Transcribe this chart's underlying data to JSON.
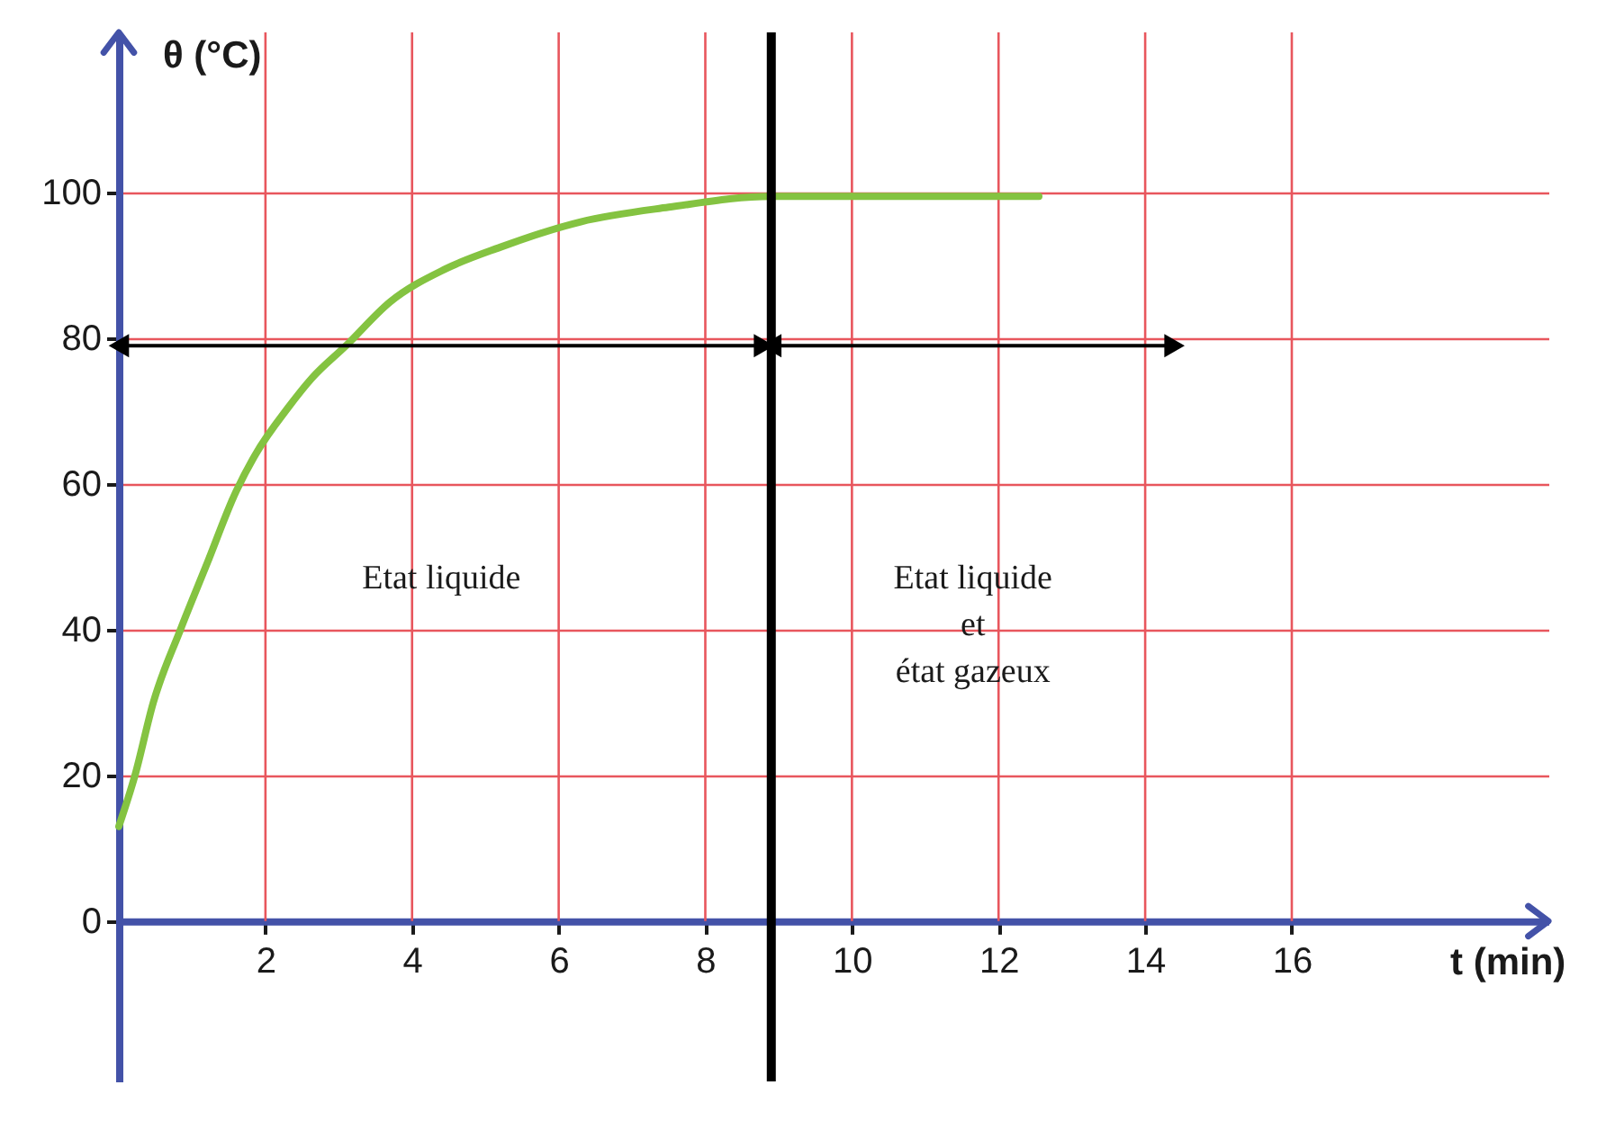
{
  "chart_data": {
    "type": "line",
    "xlabel": "t (min)",
    "ylabel": "θ (°C)",
    "xlim": [
      0,
      19.5
    ],
    "ylim": [
      -22,
      122
    ],
    "xticks": [
      2,
      4,
      6,
      8,
      10,
      12,
      14,
      16
    ],
    "yticks": [
      0,
      20,
      40,
      60,
      80,
      100
    ],
    "grid": true,
    "series": [
      {
        "color": "#84c341",
        "x": [
          0,
          0.22,
          0.47,
          0.84,
          1.2,
          1.6,
          1.86,
          2.31,
          2.63,
          3.1,
          3.7,
          4.45,
          5.2,
          6.3,
          7.5,
          8.9,
          10,
          11,
          12.55
        ],
        "values": [
          13,
          20,
          30,
          40,
          49,
          59,
          64,
          70.5,
          74.5,
          79,
          85,
          89.5,
          92.5,
          96,
          98,
          99.5,
          99.5,
          99.5,
          99.5
        ]
      },
      {
        "color": "#000000",
        "x": [
          0,
          8.8
        ],
        "values": [
          79,
          79
        ],
        "marker": "triangle"
      },
      {
        "color": "#000000",
        "x": [
          8.9,
          14.4
        ],
        "values": [
          79,
          79
        ],
        "marker": "triangle"
      }
    ],
    "ref_lines": [
      {
        "axis": "x",
        "value": 8.9,
        "color": "#000000"
      }
    ],
    "annotations": [
      "Etat liquide",
      "Etat liquide\net\nétat gazeux"
    ]
  }
}
